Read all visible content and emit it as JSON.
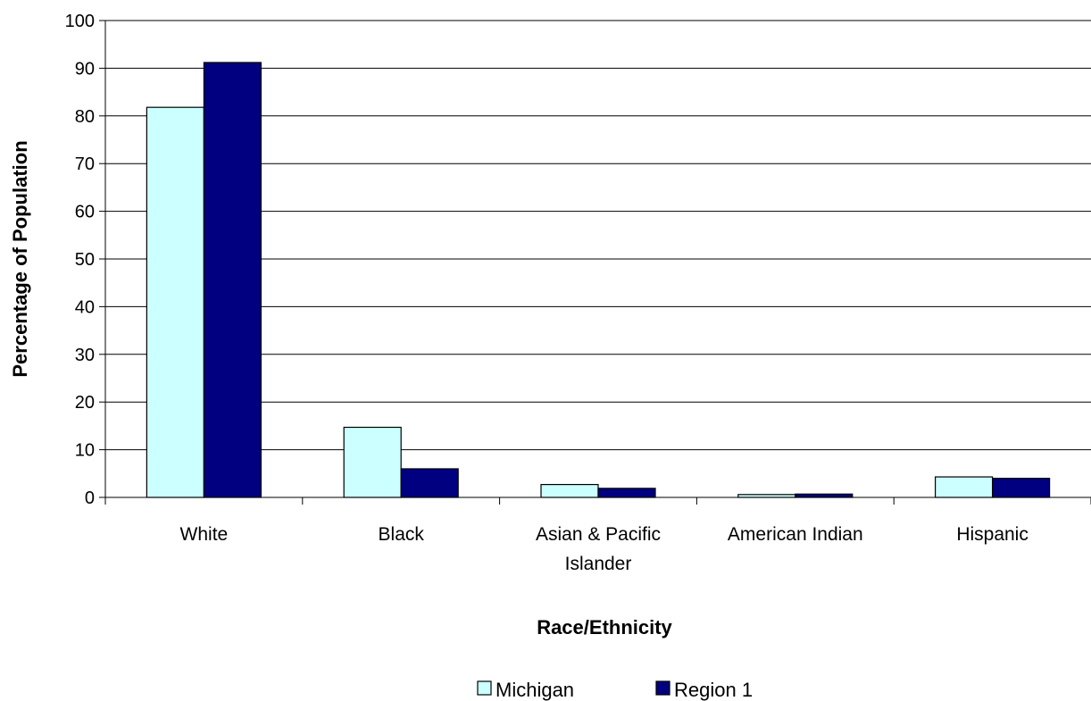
{
  "chart_data": {
    "type": "bar",
    "categories": [
      [
        "White"
      ],
      [
        "Black"
      ],
      [
        "Asian & Pacific",
        "Islander"
      ],
      [
        "American Indian"
      ],
      [
        "Hispanic"
      ]
    ],
    "series": [
      {
        "name": "Michigan",
        "color": "#ccffff",
        "values": [
          81.8,
          14.7,
          2.7,
          0.6,
          4.3
        ]
      },
      {
        "name": "Region 1",
        "color": "#000080",
        "values": [
          91.2,
          6.0,
          1.9,
          0.7,
          4.0
        ]
      }
    ],
    "xlabel": "Race/Ethnicity",
    "ylabel": "Percentage of Population",
    "ylim": [
      0,
      100
    ],
    "yticks": [
      0,
      10,
      20,
      30,
      40,
      50,
      60,
      70,
      80,
      90,
      100
    ],
    "grid": true,
    "legend": "bottom-center"
  }
}
